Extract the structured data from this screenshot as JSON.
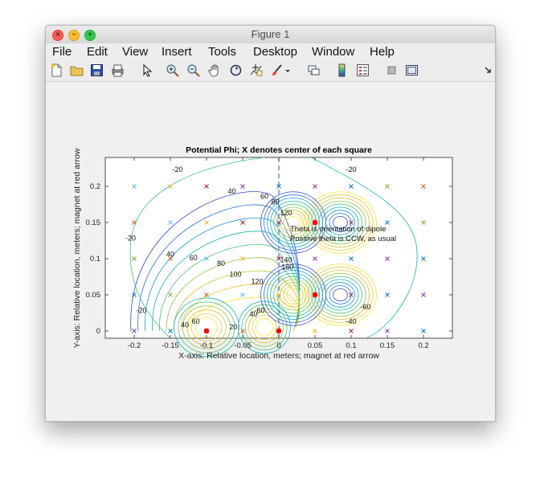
{
  "window": {
    "title": "Figure 1"
  },
  "menu": {
    "file": "File",
    "edit": "Edit",
    "view": "View",
    "insert": "Insert",
    "tools": "Tools",
    "desktop": "Desktop",
    "window": "Window",
    "help": "Help"
  },
  "toolbar": {
    "icons": [
      "new-figure-icon",
      "open-file-icon",
      "save-icon",
      "print-icon",
      "pointer-icon",
      "zoom-in-icon",
      "zoom-out-icon",
      "pan-icon",
      "rotate-3d-icon",
      "data-cursor-icon",
      "brush-icon",
      "brush-dropdown-icon",
      "link-plot-icon",
      "insert-colorbar-icon",
      "insert-legend-icon",
      "hide-plot-tools-icon",
      "show-plot-tools-icon",
      "dock-icon"
    ]
  },
  "colors": {
    "marker_red": "#ff0000",
    "axis_dashed": "#3b7fc4"
  },
  "chart_data": {
    "type": "contour",
    "title": "Potential Phi;  X denotes center of each square",
    "xlabel": "X-axis: Relative location, meters;  magnet at red arrow",
    "ylabel": "Y-axis: Relative location, meters;  magnet at red arrow",
    "xlim": [
      -0.24,
      0.24
    ],
    "ylim": [
      -0.01,
      0.24
    ],
    "xticks": [
      -0.2,
      -0.15,
      -0.1,
      -0.05,
      0,
      0.05,
      0.1,
      0.15,
      0.2
    ],
    "xtick_labels": [
      "-0.2",
      "-0.15",
      "-0.1",
      "-0.05",
      "0",
      "0.05",
      "0.1",
      "0.15",
      "0.2"
    ],
    "yticks": [
      0,
      0.05,
      0.1,
      0.15,
      0.2
    ],
    "ytick_labels": [
      "0",
      "0.05",
      "0.1",
      "0.15",
      "0.2"
    ],
    "grid": false,
    "annotations": [
      "Theta is orientation of dipole",
      "Positive theta is CCW, as usual"
    ],
    "contour_labels": [
      {
        "text": "-20",
        "x": -0.14,
        "y": 0.22
      },
      {
        "text": "-20",
        "x": -0.205,
        "y": 0.125
      },
      {
        "text": "-20",
        "x": -0.19,
        "y": 0.025
      },
      {
        "text": "40",
        "x": -0.065,
        "y": 0.19
      },
      {
        "text": "40",
        "x": -0.15,
        "y": 0.103
      },
      {
        "text": "60",
        "x": -0.02,
        "y": 0.183
      },
      {
        "text": "60",
        "x": -0.118,
        "y": 0.098
      },
      {
        "text": "80",
        "x": -0.08,
        "y": 0.09
      },
      {
        "text": "80",
        "x": -0.005,
        "y": 0.175
      },
      {
        "text": "100",
        "x": -0.06,
        "y": 0.075
      },
      {
        "text": "120",
        "x": -0.03,
        "y": 0.065
      },
      {
        "text": "120",
        "x": 0.01,
        "y": 0.16
      },
      {
        "text": "140",
        "x": 0.01,
        "y": 0.095
      },
      {
        "text": "160",
        "x": 0.012,
        "y": 0.085
      },
      {
        "text": "20",
        "x": -0.063,
        "y": 0.002
      },
      {
        "text": "-20",
        "x": 0.1,
        "y": 0.22
      },
      {
        "text": "-40",
        "x": 0.1,
        "y": 0.01
      },
      {
        "text": "-60",
        "x": 0.12,
        "y": 0.03
      },
      {
        "text": "40",
        "x": -0.13,
        "y": 0.005
      },
      {
        "text": "60",
        "x": -0.115,
        "y": 0.01
      },
      {
        "text": "40",
        "x": -0.035,
        "y": 0.02
      },
      {
        "text": "60",
        "x": -0.025,
        "y": 0.025
      }
    ],
    "square_centers_x": [
      -0.2,
      -0.15,
      -0.1,
      -0.05,
      0,
      0.05,
      0.1,
      0.15,
      0.2
    ],
    "square_centers_y": [
      0,
      0.05,
      0.1,
      0.15,
      0.2
    ],
    "dipoles": [
      {
        "x": -0.1,
        "y": 0
      },
      {
        "x": 0,
        "y": 0
      },
      {
        "x": 0.05,
        "y": 0.05
      },
      {
        "x": 0.05,
        "y": 0.15
      }
    ]
  }
}
